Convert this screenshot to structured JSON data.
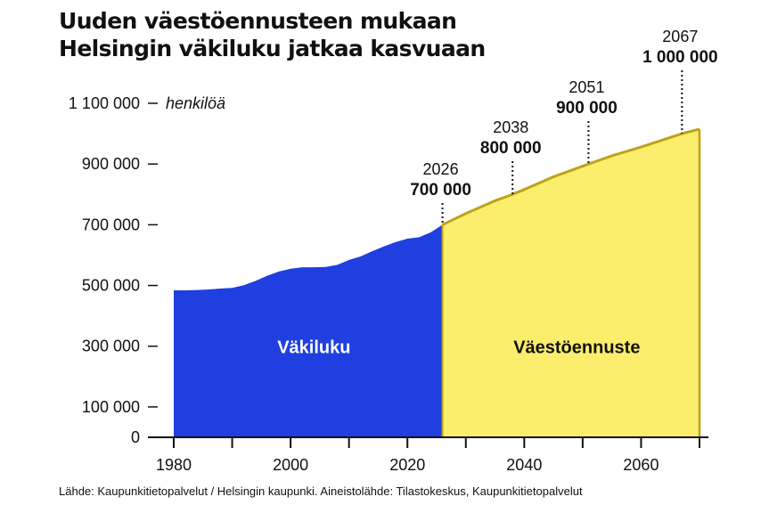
{
  "title": {
    "line1": "Uuden väestöennusteen mukaan",
    "line2": "Helsingin väkiluku jatkaa kasvuaan"
  },
  "source": "Lähde: Kaupunkitietopalvelut / Helsingin kaupunki. Aineistolähde: Tilastokeskus, Kaupunkitietopalvelut",
  "colors": {
    "history": "#1f3fe0",
    "forecast": "#fbee6d",
    "forecast_line": "#bfa21a",
    "text": "#111111"
  },
  "chart_data": {
    "type": "area",
    "ylabel": "henkilöä",
    "xlim": [
      1978,
      2071
    ],
    "ylim": [
      0,
      1100000
    ],
    "y_ticks": [
      {
        "value": 0,
        "label": "0"
      },
      {
        "value": 100000,
        "label": "100 000"
      },
      {
        "value": 300000,
        "label": "300 000"
      },
      {
        "value": 500000,
        "label": "500 000"
      },
      {
        "value": 700000,
        "label": "700 000"
      },
      {
        "value": 900000,
        "label": "900 000"
      },
      {
        "value": 1100000,
        "label": "1 100 000"
      }
    ],
    "x_ticks": [
      {
        "value": 1980,
        "label": "1980"
      },
      {
        "value": 2000,
        "label": "2000"
      },
      {
        "value": 2020,
        "label": "2020"
      },
      {
        "value": 2040,
        "label": "2040"
      },
      {
        "value": 2060,
        "label": "2060"
      }
    ],
    "x_minor_ticks": [
      1990,
      2010,
      2030,
      2050,
      2070
    ],
    "series": [
      {
        "name": "Väkiluku",
        "x": [
          1980,
          1982,
          1984,
          1986,
          1988,
          1990,
          1992,
          1994,
          1996,
          1998,
          2000,
          2002,
          2004,
          2006,
          2008,
          2010,
          2012,
          2014,
          2016,
          2018,
          2020,
          2022,
          2024,
          2026
        ],
        "y": [
          484000,
          484000,
          485000,
          487000,
          490000,
          492000,
          501000,
          515000,
          532000,
          546000,
          555000,
          560000,
          560000,
          561000,
          568000,
          584000,
          596000,
          613000,
          629000,
          643000,
          654000,
          659000,
          675000,
          700000
        ]
      },
      {
        "name": "Väestöennuste",
        "x": [
          2026,
          2030,
          2035,
          2038,
          2040,
          2045,
          2051,
          2055,
          2060,
          2067,
          2070
        ],
        "y": [
          700000,
          737000,
          779000,
          800000,
          816000,
          858000,
          900000,
          927000,
          956000,
          1000000,
          1015000
        ]
      }
    ],
    "annotations": [
      {
        "year": 2026,
        "year_label": "2026",
        "value": 700000,
        "value_label": "700 000"
      },
      {
        "year": 2038,
        "year_label": "2038",
        "value": 800000,
        "value_label": "800 000"
      },
      {
        "year": 2051,
        "year_label": "2051",
        "value": 900000,
        "value_label": "900 000"
      },
      {
        "year": 2067,
        "year_label": "2067",
        "value": 1000000,
        "value_label": "1 000 000"
      }
    ]
  }
}
